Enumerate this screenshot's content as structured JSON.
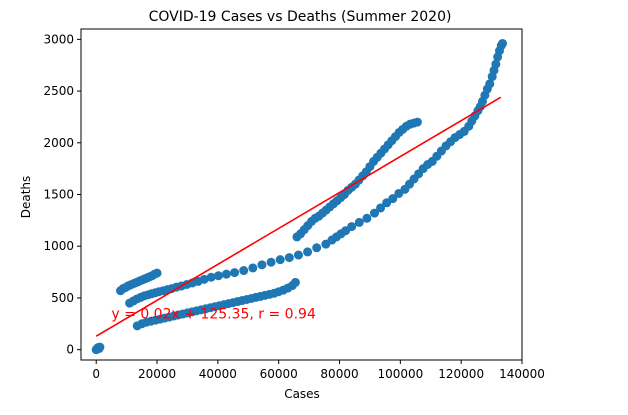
{
  "chart_data": {
    "type": "scatter",
    "title": "COVID-19 Cases vs Deaths (Summer 2020)",
    "xlabel": "Cases",
    "ylabel": "Deaths",
    "xlim": [
      -5000,
      140000
    ],
    "ylim": [
      -100,
      3100
    ],
    "xticks": [
      0,
      20000,
      40000,
      60000,
      80000,
      100000,
      120000,
      140000
    ],
    "xtick_labels": [
      "0",
      "20000",
      "40000",
      "60000",
      "80000",
      "100000",
      "120000",
      "140000"
    ],
    "yticks": [
      0,
      500,
      1000,
      1500,
      2000,
      2500,
      3000
    ],
    "ytick_labels": [
      "0",
      "500",
      "1000",
      "1500",
      "2000",
      "2500",
      "3000"
    ],
    "grid": false,
    "point_color": "#1f77b4",
    "regression": {
      "slope": 0.02,
      "intercept": 125.35,
      "r": 0.94,
      "x_range": [
        0,
        133000
      ],
      "y_range": [
        130,
        2440
      ],
      "color": "#ff0000",
      "equation_label": "y = 0.02x + 125.35, r = 0.94",
      "label_x": 5000,
      "label_y": 300
    },
    "points": [
      [
        0,
        0
      ],
      [
        300,
        10
      ],
      [
        600,
        20
      ],
      [
        900,
        10
      ],
      [
        1200,
        25
      ],
      [
        8000,
        570
      ],
      [
        8800,
        590
      ],
      [
        9600,
        600
      ],
      [
        10400,
        615
      ],
      [
        11200,
        625
      ],
      [
        12000,
        635
      ],
      [
        12800,
        645
      ],
      [
        13600,
        655
      ],
      [
        14400,
        665
      ],
      [
        15200,
        675
      ],
      [
        16000,
        685
      ],
      [
        16800,
        695
      ],
      [
        17600,
        705
      ],
      [
        18400,
        715
      ],
      [
        19200,
        730
      ],
      [
        20000,
        740
      ],
      [
        11000,
        450
      ],
      [
        12200,
        470
      ],
      [
        13400,
        490
      ],
      [
        14600,
        505
      ],
      [
        15800,
        520
      ],
      [
        17000,
        530
      ],
      [
        18200,
        540
      ],
      [
        19400,
        550
      ],
      [
        20600,
        560
      ],
      [
        22000,
        570
      ],
      [
        23400,
        580
      ],
      [
        24800,
        590
      ],
      [
        26400,
        605
      ],
      [
        28000,
        615
      ],
      [
        29800,
        630
      ],
      [
        31600,
        645
      ],
      [
        33500,
        660
      ],
      [
        35500,
        680
      ],
      [
        37800,
        700
      ],
      [
        40200,
        715
      ],
      [
        42800,
        730
      ],
      [
        45500,
        745
      ],
      [
        48500,
        765
      ],
      [
        51500,
        790
      ],
      [
        54500,
        820
      ],
      [
        57500,
        845
      ],
      [
        60500,
        870
      ],
      [
        63500,
        890
      ],
      [
        66500,
        915
      ],
      [
        69500,
        945
      ],
      [
        72500,
        985
      ],
      [
        75500,
        1020
      ],
      [
        77500,
        1060
      ],
      [
        79000,
        1090
      ],
      [
        80500,
        1120
      ],
      [
        82000,
        1150
      ],
      [
        84000,
        1190
      ],
      [
        86500,
        1230
      ],
      [
        89000,
        1270
      ],
      [
        91500,
        1320
      ],
      [
        93500,
        1370
      ],
      [
        95500,
        1420
      ],
      [
        97500,
        1460
      ],
      [
        99500,
        1510
      ],
      [
        101500,
        1550
      ],
      [
        103000,
        1600
      ],
      [
        104500,
        1650
      ],
      [
        106000,
        1700
      ],
      [
        107500,
        1750
      ],
      [
        109000,
        1790
      ],
      [
        110500,
        1820
      ],
      [
        112000,
        1870
      ],
      [
        113500,
        1920
      ],
      [
        115000,
        1970
      ],
      [
        116500,
        2010
      ],
      [
        118000,
        2050
      ],
      [
        119500,
        2080
      ],
      [
        121000,
        2110
      ],
      [
        122500,
        2160
      ],
      [
        123500,
        2210
      ],
      [
        124500,
        2260
      ],
      [
        125500,
        2310
      ],
      [
        126300,
        2350
      ],
      [
        127000,
        2400
      ],
      [
        127800,
        2460
      ],
      [
        128600,
        2520
      ],
      [
        129400,
        2570
      ],
      [
        130200,
        2640
      ],
      [
        130800,
        2700
      ],
      [
        131400,
        2760
      ],
      [
        132000,
        2830
      ],
      [
        132600,
        2890
      ],
      [
        133200,
        2940
      ],
      [
        133600,
        2960
      ],
      [
        13500,
        230
      ],
      [
        15000,
        250
      ],
      [
        16500,
        265
      ],
      [
        18000,
        275
      ],
      [
        19500,
        285
      ],
      [
        21000,
        295
      ],
      [
        22500,
        305
      ],
      [
        24000,
        315
      ],
      [
        25500,
        325
      ],
      [
        27000,
        335
      ],
      [
        28500,
        345
      ],
      [
        30000,
        355
      ],
      [
        31500,
        365
      ],
      [
        33000,
        375
      ],
      [
        34500,
        385
      ],
      [
        36000,
        395
      ],
      [
        37500,
        405
      ],
      [
        39000,
        415
      ],
      [
        40500,
        425
      ],
      [
        42000,
        435
      ],
      [
        43500,
        445
      ],
      [
        45000,
        455
      ],
      [
        46500,
        465
      ],
      [
        48000,
        475
      ],
      [
        49500,
        485
      ],
      [
        51000,
        495
      ],
      [
        52500,
        505
      ],
      [
        54000,
        515
      ],
      [
        55500,
        525
      ],
      [
        57000,
        535
      ],
      [
        58500,
        545
      ],
      [
        60000,
        560
      ],
      [
        61500,
        575
      ],
      [
        63000,
        595
      ],
      [
        64500,
        620
      ],
      [
        65500,
        650
      ],
      [
        66000,
        1090
      ],
      [
        67200,
        1120
      ],
      [
        68400,
        1160
      ],
      [
        69600,
        1200
      ],
      [
        70800,
        1240
      ],
      [
        72000,
        1270
      ],
      [
        73200,
        1290
      ],
      [
        74400,
        1320
      ],
      [
        75600,
        1350
      ],
      [
        76800,
        1380
      ],
      [
        78000,
        1410
      ],
      [
        79200,
        1440
      ],
      [
        80400,
        1470
      ],
      [
        81600,
        1500
      ],
      [
        82800,
        1540
      ],
      [
        84000,
        1570
      ],
      [
        85200,
        1600
      ],
      [
        86400,
        1640
      ],
      [
        87600,
        1680
      ],
      [
        88800,
        1720
      ],
      [
        90000,
        1770
      ],
      [
        91200,
        1820
      ],
      [
        92400,
        1860
      ],
      [
        93600,
        1900
      ],
      [
        94800,
        1940
      ],
      [
        96000,
        1980
      ],
      [
        97200,
        2020
      ],
      [
        98400,
        2060
      ],
      [
        99600,
        2100
      ],
      [
        100800,
        2130
      ],
      [
        102000,
        2160
      ],
      [
        103200,
        2180
      ],
      [
        104400,
        2190
      ],
      [
        105600,
        2200
      ]
    ]
  }
}
